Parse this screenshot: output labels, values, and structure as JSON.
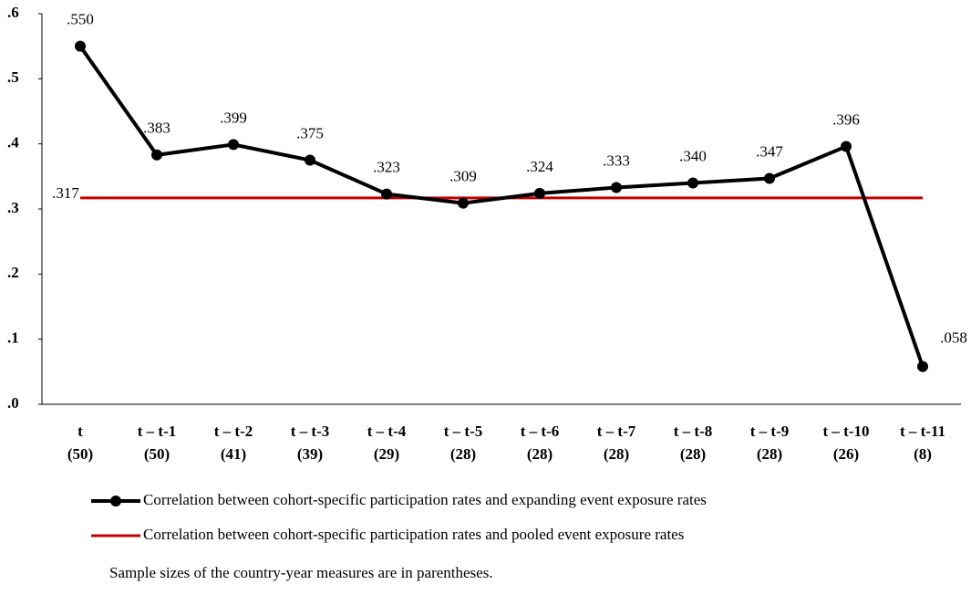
{
  "chart_data": {
    "type": "line",
    "categories": [
      "t",
      "t – t-1",
      "t – t-2",
      "t – t-3",
      "t – t-4",
      "t – t-5",
      "t – t-6",
      "t – t-7",
      "t – t-8",
      "t – t-9",
      "t – t-10",
      "t – t-11"
    ],
    "sample_sizes": [
      "(50)",
      "(50)",
      "(41)",
      "(39)",
      "(29)",
      "(28)",
      "(28)",
      "(28)",
      "(28)",
      "(28)",
      "(26)",
      "(8)"
    ],
    "series": [
      {
        "name": "Correlation between cohort-specific participation rates and expanding event exposure rates",
        "color": "#000000",
        "values": [
          0.55,
          0.383,
          0.399,
          0.375,
          0.323,
          0.309,
          0.324,
          0.333,
          0.34,
          0.347,
          0.396,
          0.058
        ],
        "value_labels": [
          ".550",
          ".383",
          ".399",
          ".375",
          ".323",
          ".309",
          ".324",
          ".333",
          ".340",
          ".347",
          ".396",
          ".058"
        ]
      },
      {
        "name": "Correlation between cohort-specific participation rates and pooled event exposure rates",
        "color": "#c00000",
        "value": 0.317,
        "value_label": ".317"
      }
    ],
    "ylim": [
      0,
      0.6
    ],
    "yticks": [
      {
        "value": 0,
        "label": ".0"
      },
      {
        "value": 0.1,
        "label": ".1"
      },
      {
        "value": 0.2,
        "label": ".2"
      },
      {
        "value": 0.3,
        "label": ".3"
      },
      {
        "value": 0.4,
        "label": ".4"
      },
      {
        "value": 0.5,
        "label": ".5"
      },
      {
        "value": 0.6,
        "label": ".6"
      }
    ],
    "note": "Sample sizes of the country-year measures are in parentheses."
  }
}
